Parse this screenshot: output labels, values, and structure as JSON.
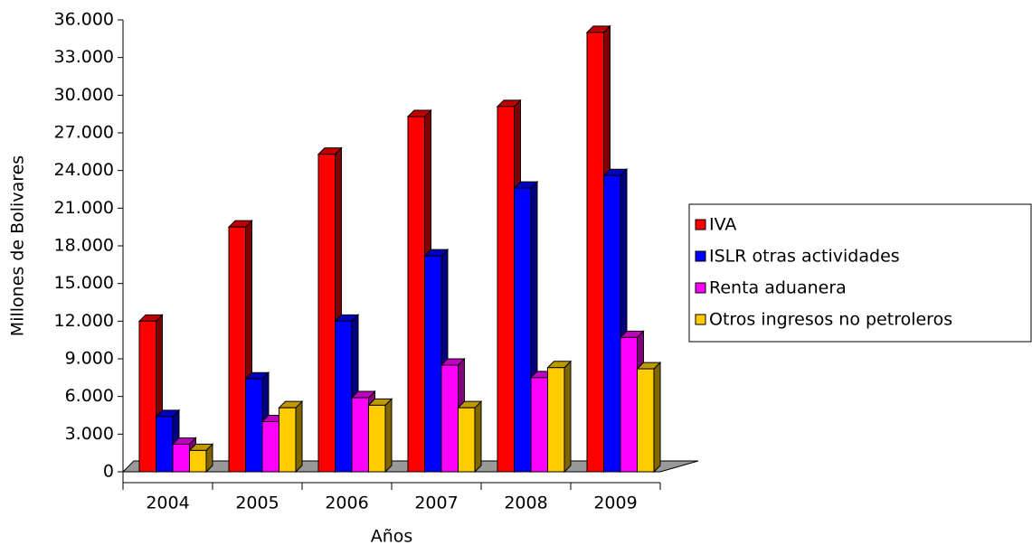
{
  "chart_data": {
    "type": "bar3d",
    "ylabel": "Millones de Bolivares",
    "xlabel": "Años",
    "categories": [
      "2004",
      "2005",
      "2006",
      "2007",
      "2008",
      "2009"
    ],
    "series": [
      {
        "name": "IVA",
        "color": "#ff0000",
        "values": [
          12000,
          19500,
          25300,
          28300,
          29100,
          35000
        ]
      },
      {
        "name": "ISLR otras actividades",
        "color": "#0000ff",
        "values": [
          4400,
          7400,
          12000,
          17200,
          22600,
          23600
        ]
      },
      {
        "name": "Renta aduanera",
        "color": "#ff00ff",
        "values": [
          2200,
          4000,
          5900,
          8500,
          7500,
          10700
        ]
      },
      {
        "name": "Otros ingresos no petroleros",
        "color": "#ffcc00",
        "values": [
          1700,
          5100,
          5300,
          5100,
          8300,
          8200
        ]
      }
    ],
    "ylim": [
      0,
      36000
    ],
    "yticks": [
      0,
      {
        "value": 3000,
        "label": "3.000"
      },
      {
        "value": 6000,
        "label": "6.000"
      },
      {
        "value": 9000,
        "label": "9.000"
      },
      {
        "value": 12000,
        "label": "12.000"
      },
      {
        "value": 15000,
        "label": "15.000"
      },
      {
        "value": 18000,
        "label": "18.000"
      },
      {
        "value": 21000,
        "label": "21.000"
      },
      {
        "value": 24000,
        "label": "24.000"
      },
      {
        "value": 27000,
        "label": "27.000"
      },
      {
        "value": 30000,
        "label": "30.000"
      },
      {
        "value": 33000,
        "label": "33.000"
      },
      {
        "value": 36000,
        "label": "36.000"
      }
    ],
    "legend": "right"
  }
}
